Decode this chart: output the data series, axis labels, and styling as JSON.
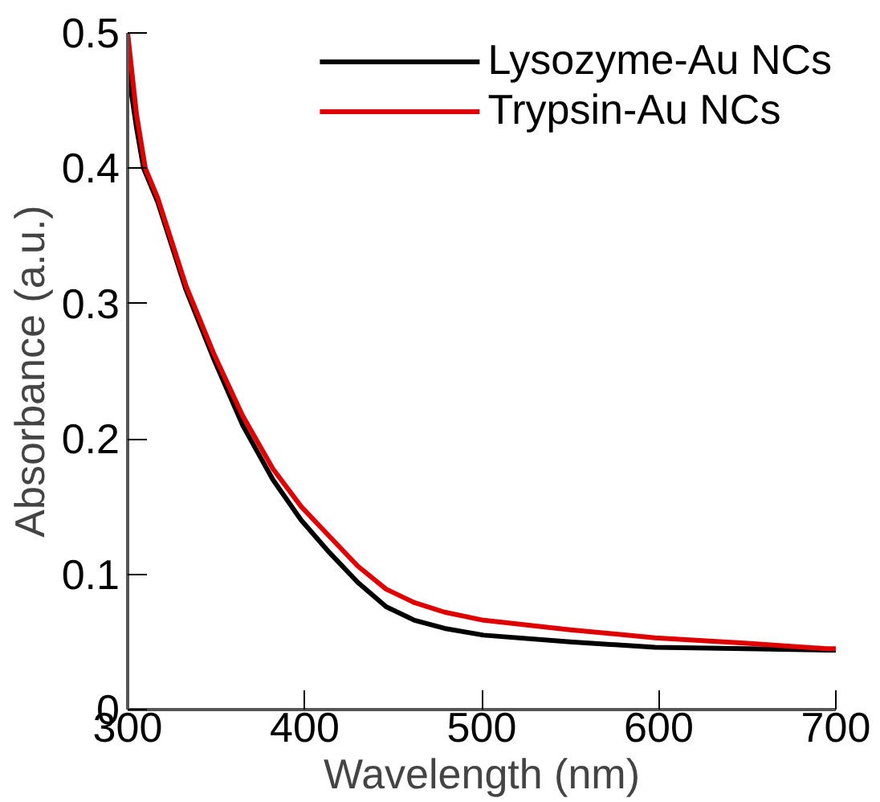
{
  "chart_data": {
    "type": "line",
    "xlabel": "Wavelength (nm)",
    "ylabel": "Absorbance (a.u.)",
    "xlim": [
      300,
      700
    ],
    "ylim": [
      0,
      0.5
    ],
    "xticks": [
      300,
      400,
      500,
      600,
      700
    ],
    "yticks": [
      0,
      0.1,
      0.2,
      0.3,
      0.4,
      0.5
    ],
    "grid": false,
    "legend": "top right",
    "line_style": "solid",
    "marker": "none",
    "series": [
      {
        "name": "Lysozyme-Au NCs",
        "color": "#000000",
        "x": [
          300,
          305,
          309,
          317,
          333,
          349,
          365,
          382,
          398,
          414,
          430,
          446,
          462,
          479,
          501,
          550,
          598,
          650,
          695,
          700
        ],
        "values": [
          0.474,
          0.43,
          0.4,
          0.375,
          0.31,
          0.258,
          0.21,
          0.17,
          0.14,
          0.116,
          0.094,
          0.076,
          0.066,
          0.06,
          0.055,
          0.05,
          0.046,
          0.045,
          0.044,
          0.044
        ]
      },
      {
        "name": "Trypsin-Au NCs",
        "color": "#e00000",
        "x": [
          300,
          305,
          310,
          317,
          333,
          349,
          365,
          382,
          398,
          414,
          430,
          446,
          462,
          479,
          501,
          550,
          598,
          650,
          695,
          700
        ],
        "values": [
          0.5,
          0.44,
          0.4,
          0.378,
          0.313,
          0.262,
          0.217,
          0.178,
          0.15,
          0.128,
          0.106,
          0.089,
          0.079,
          0.072,
          0.066,
          0.059,
          0.053,
          0.049,
          0.045,
          0.045
        ]
      }
    ]
  }
}
